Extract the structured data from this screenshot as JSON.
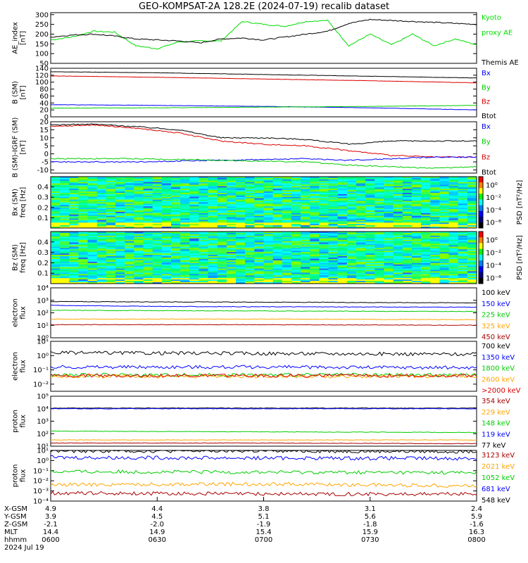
{
  "chart_data": {
    "type": "line",
    "title": "GEO-KOMPSAT-2A 128.2E (2024-07-19) recalib dataset",
    "panels": [
      {
        "id": "ae",
        "ylabel_lines": [
          "AE_index",
          "[nT]"
        ],
        "ylim": [
          50,
          310
        ],
        "yticks": [
          50,
          100,
          150,
          200,
          250,
          300
        ],
        "log": false,
        "legend": [
          {
            "text": "Kyoto",
            "color": "#00dd00"
          },
          {
            "text": "proxy AE",
            "color": "#00dd00"
          },
          {
            "text": "",
            "color": "#000000"
          },
          {
            "text": "Themis AE",
            "color": "#000000"
          }
        ],
        "series": [
          {
            "name": "Kyoto proxy AE",
            "color": "#00dd00",
            "x": [
              0,
              0.05,
              0.1,
              0.15,
              0.2,
              0.25,
              0.3,
              0.35,
              0.4,
              0.45,
              0.5,
              0.55,
              0.6,
              0.65,
              0.7,
              0.75,
              0.8,
              0.85,
              0.9,
              0.95,
              1
            ],
            "y": [
              170,
              185,
              215,
              210,
              140,
              125,
              160,
              165,
              165,
              265,
              250,
              240,
              265,
              270,
              140,
              200,
              145,
              200,
              140,
              175,
              145
            ]
          },
          {
            "name": "Themis AE",
            "color": "#000000",
            "x": [
              0,
              0.05,
              0.1,
              0.15,
              0.2,
              0.25,
              0.3,
              0.35,
              0.4,
              0.45,
              0.5,
              0.55,
              0.6,
              0.65,
              0.7,
              0.75,
              0.8,
              0.85,
              0.9,
              0.95,
              1
            ],
            "y": [
              185,
              195,
              200,
              190,
              175,
              170,
              165,
              155,
              175,
              180,
              170,
              185,
              200,
              215,
              255,
              275,
              270,
              265,
              260,
              255,
              250
            ]
          }
        ]
      },
      {
        "id": "b",
        "ylabel_lines": [
          "B (SM)",
          "[nT]"
        ],
        "ylim": [
          0,
          140
        ],
        "yticks": [
          0,
          20,
          40,
          60,
          80,
          100,
          120,
          140
        ],
        "log": false,
        "legend": [
          {
            "text": "Bx",
            "color": "#0000ff"
          },
          {
            "text": "By",
            "color": "#00cc00"
          },
          {
            "text": "Bz",
            "color": "#dd0000"
          },
          {
            "text": "Btot",
            "color": "#000000"
          }
        ],
        "series": [
          {
            "name": "Bx",
            "color": "#0000ff",
            "x": [
              0,
              0.25,
              0.5,
              0.75,
              1
            ],
            "y": [
              35,
              33,
              30,
              26,
              20
            ]
          },
          {
            "name": "By",
            "color": "#00cc00",
            "x": [
              0,
              0.25,
              0.5,
              0.75,
              1
            ],
            "y": [
              25,
              26,
              28,
              30,
              33
            ]
          },
          {
            "name": "Bz",
            "color": "#dd0000",
            "x": [
              0,
              0.25,
              0.5,
              0.75,
              1
            ],
            "y": [
              118,
              114,
              109,
              104,
              98
            ]
          },
          {
            "name": "Btot",
            "color": "#000000",
            "x": [
              0,
              0.25,
              0.5,
              0.75,
              1
            ],
            "y": [
              130,
              127,
              122,
              117,
              112
            ]
          }
        ]
      },
      {
        "id": "db",
        "ylabel_lines": [
          "B (SM)-IGRF (SM)",
          "[nT]"
        ],
        "ylim": [
          -12,
          20
        ],
        "yticks": [
          -10,
          -5,
          0,
          5,
          10,
          15,
          20
        ],
        "log": false,
        "legend": [
          {
            "text": "Bx",
            "color": "#0000ff"
          },
          {
            "text": "By",
            "color": "#00cc00"
          },
          {
            "text": "Bz",
            "color": "#dd0000"
          },
          {
            "text": "Btot",
            "color": "#000000"
          }
        ],
        "series": [
          {
            "name": "Btot",
            "color": "#000000",
            "x": [
              0,
              0.1,
              0.2,
              0.3,
              0.4,
              0.5,
              0.6,
              0.7,
              0.8,
              0.9,
              1
            ],
            "y": [
              18,
              18.5,
              17,
              15,
              10,
              10,
              9,
              6,
              8,
              8,
              8
            ]
          },
          {
            "name": "Bz",
            "color": "#dd0000",
            "x": [
              0,
              0.1,
              0.2,
              0.3,
              0.4,
              0.5,
              0.6,
              0.7,
              0.8,
              0.9,
              1
            ],
            "y": [
              17,
              18,
              16,
              13,
              8,
              6,
              5,
              2,
              -1,
              -2,
              -2
            ]
          },
          {
            "name": "Bx",
            "color": "#0000ff",
            "x": [
              0,
              0.2,
              0.4,
              0.6,
              0.7,
              0.8,
              0.9,
              1
            ],
            "y": [
              -5,
              -5,
              -4,
              -3,
              -4,
              -3,
              -2,
              -2
            ]
          },
          {
            "name": "By",
            "color": "#00cc00",
            "x": [
              0,
              0.2,
              0.4,
              0.6,
              0.7,
              0.8,
              0.9,
              1
            ],
            "y": [
              -3,
              -3,
              -4,
              -5,
              -7,
              -8,
              -9,
              -8
            ]
          }
        ]
      },
      {
        "id": "bxspec",
        "type": "heatmap",
        "ylabel_lines": [
          "Bx (SM)",
          "freq [Hz]"
        ],
        "ylim": [
          0,
          0.5
        ],
        "yticks": [
          0.1,
          0.2,
          0.3,
          0.4
        ],
        "colorbar_label": "PSD [nT²/Hz]",
        "colorbar_ticks": [
          "10⁰",
          "10⁻²",
          "10⁻⁴",
          "10⁻⁶"
        ]
      },
      {
        "id": "bzspec",
        "type": "heatmap",
        "ylabel_lines": [
          "Bz (SM)",
          "freq [Hz]"
        ],
        "ylim": [
          0,
          0.5
        ],
        "yticks": [
          0.1,
          0.2,
          0.3,
          0.4
        ],
        "colorbar_label": "PSD [nT²/Hz]",
        "colorbar_ticks": [
          "10⁰",
          "10⁻²",
          "10⁻⁴",
          "10⁻⁶"
        ]
      },
      {
        "id": "elec1",
        "ylabel_lines": [
          "electron",
          "flux"
        ],
        "ylim": [
          0,
          4
        ],
        "yticks": [
          0,
          1,
          2,
          3,
          4
        ],
        "ytick_labels": [
          "10⁰",
          "10¹",
          "10²",
          "10³",
          "10⁴"
        ],
        "log": true,
        "legend": [
          {
            "text": "100 keV",
            "color": "#000000"
          },
          {
            "text": "150 keV",
            "color": "#0000ff"
          },
          {
            "text": "225 keV",
            "color": "#00cc00"
          },
          {
            "text": "325 keV",
            "color": "#ffa500"
          },
          {
            "text": "450 keV",
            "color": "#aa0000"
          }
        ],
        "series": [
          {
            "name": "100 keV",
            "color": "#000000",
            "x": [
              0,
              0.5,
              1
            ],
            "y": [
              2.9,
              2.85,
              2.8
            ]
          },
          {
            "name": "150 keV",
            "color": "#0000ff",
            "x": [
              0,
              0.3,
              1
            ],
            "y": [
              2.6,
              2.5,
              2.45
            ]
          },
          {
            "name": "225 keV",
            "color": "#00cc00",
            "x": [
              0,
              0.5,
              1
            ],
            "y": [
              2.2,
              2.15,
              2.1
            ]
          },
          {
            "name": "325 keV",
            "color": "#ffa500",
            "x": [
              0,
              0.5,
              1
            ],
            "y": [
              1.5,
              1.5,
              1.45
            ]
          },
          {
            "name": "450 keV",
            "color": "#aa0000",
            "x": [
              0,
              0.5,
              1
            ],
            "y": [
              1.05,
              1.05,
              1.0
            ]
          }
        ]
      },
      {
        "id": "elec2",
        "ylabel_lines": [
          "electron",
          "flux"
        ],
        "ylim": [
          -2.5,
          1
        ],
        "yticks": [
          -2,
          -1,
          0,
          1
        ],
        "ytick_labels": [
          "10⁻²",
          "10⁻¹",
          "10⁰",
          "10¹"
        ],
        "log": true,
        "legend": [
          {
            "text": "700 keV",
            "color": "#000000"
          },
          {
            "text": "1350 keV",
            "color": "#0000ff"
          },
          {
            "text": "1800 keV",
            "color": "#00cc00"
          },
          {
            "text": "2600 keV",
            "color": "#ffa500"
          },
          {
            "text": ">2000 keV",
            "color": "#dd0000"
          }
        ],
        "series": [
          {
            "name": "700 keV",
            "color": "#000000",
            "x": [
              0,
              0.5,
              1
            ],
            "y": [
              0.2,
              0.15,
              0.1
            ]
          },
          {
            "name": "1350 keV",
            "color": "#0000ff",
            "x": [
              0,
              0.5,
              1
            ],
            "y": [
              -0.8,
              -0.8,
              -0.85
            ]
          },
          {
            "name": "1800 keV",
            "color": "#00cc00",
            "x": [
              0,
              0.5,
              1
            ],
            "y": [
              -1.35,
              -1.35,
              -1.35
            ]
          },
          {
            "name": "2600 keV",
            "color": "#ffa500",
            "x": [
              0,
              0.5,
              1
            ],
            "y": [
              -1.45,
              -1.45,
              -1.45
            ]
          },
          {
            "name": ">2000 keV",
            "color": "#dd0000",
            "x": [
              0,
              0.5,
              1
            ],
            "y": [
              -1.4,
              -1.4,
              -1.4
            ]
          }
        ]
      },
      {
        "id": "prot1",
        "ylabel_lines": [
          "proton",
          "flux"
        ],
        "ylim": [
          1,
          5
        ],
        "yticks": [
          1,
          2,
          3,
          4,
          5
        ],
        "ytick_labels": [
          "10¹",
          "10²",
          "10³",
          "10⁴",
          "10⁵"
        ],
        "log": true,
        "legend": [
          {
            "text": "354 keV",
            "color": "#aa0000"
          },
          {
            "text": "229 keV",
            "color": "#ffa500"
          },
          {
            "text": "148 keV",
            "color": "#00cc00"
          },
          {
            "text": "119 keV",
            "color": "#0000ff"
          },
          {
            "text": "77 keV",
            "color": "#000000"
          }
        ],
        "series": [
          {
            "name": "77 keV",
            "color": "#000000",
            "x": [
              0,
              0.5,
              1
            ],
            "y": [
              4.05,
              4.05,
              4.05
            ]
          },
          {
            "name": "119 keV",
            "color": "#0000ff",
            "x": [
              0,
              0.5,
              1
            ],
            "y": [
              4.0,
              4.0,
              4.0
            ]
          },
          {
            "name": "148 keV",
            "color": "#00cc00",
            "x": [
              0,
              0.5,
              1
            ],
            "y": [
              2.2,
              2.15,
              2.1
            ]
          },
          {
            "name": "229 keV",
            "color": "#ffa500",
            "x": [
              0,
              0.5,
              1
            ],
            "y": [
              1.5,
              1.5,
              1.5
            ]
          },
          {
            "name": "354 keV",
            "color": "#aa0000",
            "x": [
              0,
              0.5,
              1
            ],
            "y": [
              1.25,
              1.25,
              1.2
            ]
          }
        ]
      },
      {
        "id": "prot2",
        "ylabel_lines": [
          "proton",
          "flux"
        ],
        "ylim": [
          -4,
          1
        ],
        "yticks": [
          -4,
          -3,
          -2,
          -1,
          0,
          1
        ],
        "ytick_labels": [
          "10⁻⁴",
          "10⁻³",
          "10⁻²",
          "10⁻¹",
          "10⁰",
          "10¹"
        ],
        "log": true,
        "legend": [
          {
            "text": "3123 keV",
            "color": "#aa0000"
          },
          {
            "text": "2021 keV",
            "color": "#ffa500"
          },
          {
            "text": "1052 keV",
            "color": "#00cc00"
          },
          {
            "text": "681 keV",
            "color": "#0000ff"
          },
          {
            "text": "548 keV",
            "color": "#000000"
          }
        ],
        "series": [
          {
            "name": "548 keV",
            "color": "#000000",
            "x": [
              0,
              0.5,
              1
            ],
            "y": [
              0.95,
              0.95,
              0.9
            ]
          },
          {
            "name": "681 keV",
            "color": "#0000ff",
            "x": [
              0,
              0.5,
              1
            ],
            "y": [
              0.3,
              0.25,
              0.2
            ]
          },
          {
            "name": "1052 keV",
            "color": "#00cc00",
            "x": [
              0,
              0.5,
              1
            ],
            "y": [
              -1.1,
              -1.15,
              -1.2
            ]
          },
          {
            "name": "2021 keV",
            "color": "#ffa500",
            "x": [
              0,
              0.5,
              1
            ],
            "y": [
              -2.4,
              -2.3,
              -2.5
            ]
          },
          {
            "name": "3123 keV",
            "color": "#aa0000",
            "x": [
              0,
              0.5,
              1
            ],
            "y": [
              -3.2,
              -3.3,
              -3.3
            ]
          }
        ]
      }
    ],
    "x_rows": [
      {
        "label": "X-GSM",
        "values": [
          "4.9",
          "4.4",
          "3.8",
          "3.1",
          "2.4"
        ]
      },
      {
        "label": "Y-GSM",
        "values": [
          "3.9",
          "4.5",
          "5.1",
          "5.6",
          "5.9"
        ]
      },
      {
        "label": "Z-GSM",
        "values": [
          "-2.1",
          "-2.0",
          "-1.9",
          "-1.8",
          "-1.6"
        ]
      },
      {
        "label": "MLT",
        "values": [
          "14.4",
          "14.9",
          "15.4",
          "15.9",
          "16.3"
        ]
      },
      {
        "label": "hhmm",
        "values": [
          "0600",
          "0630",
          "0700",
          "0730",
          "0800"
        ]
      }
    ],
    "date": "2024 Jul 19"
  }
}
